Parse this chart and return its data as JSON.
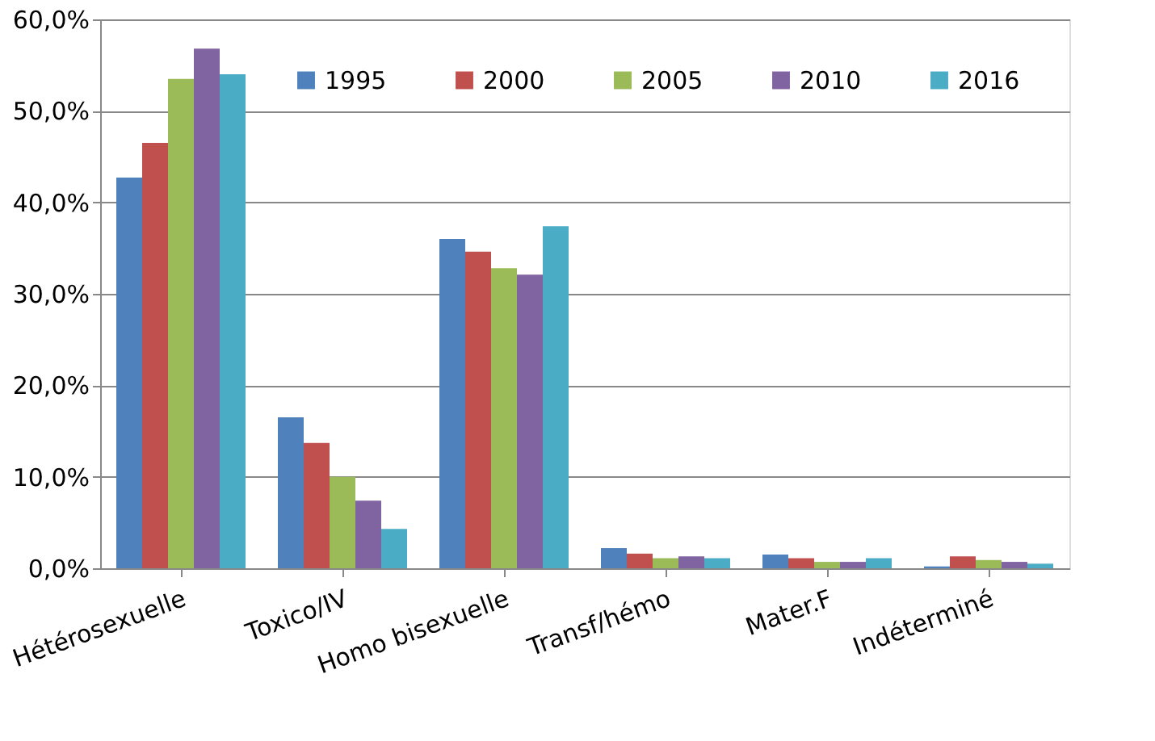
{
  "chart_data": {
    "type": "bar",
    "categories": [
      "Hétérosexuelle",
      "Toxico/IV",
      "Homo bisexuelle",
      "Transf/hémo",
      "Mater.F",
      "Indéterminé"
    ],
    "series": [
      {
        "name": "1995",
        "color": "#4f81bd",
        "values": [
          42.7,
          16.5,
          36.0,
          2.2,
          1.5,
          0.2
        ]
      },
      {
        "name": "2000",
        "color": "#c0504d",
        "values": [
          46.5,
          13.7,
          34.6,
          1.6,
          1.1,
          1.3
        ]
      },
      {
        "name": "2005",
        "color": "#9bbb59",
        "values": [
          53.5,
          10.0,
          32.8,
          1.1,
          0.7,
          0.9
        ]
      },
      {
        "name": "2010",
        "color": "#8064a2",
        "values": [
          56.8,
          7.4,
          32.1,
          1.3,
          0.7,
          0.7
        ]
      },
      {
        "name": "2016",
        "color": "#4bacc6",
        "values": [
          54.0,
          4.3,
          37.4,
          1.1,
          1.1,
          0.5
        ]
      }
    ],
    "ylim": [
      0,
      60
    ],
    "yticks": [
      {
        "value": 0,
        "label": "0,0%"
      },
      {
        "value": 10,
        "label": "10,0%"
      },
      {
        "value": 20,
        "label": "20,0%"
      },
      {
        "value": 30,
        "label": "30,0%"
      },
      {
        "value": 40,
        "label": "40,0%"
      },
      {
        "value": 50,
        "label": "50,0%"
      },
      {
        "value": 60,
        "label": "60,0%"
      }
    ],
    "grid": "y",
    "legend": "top right"
  }
}
